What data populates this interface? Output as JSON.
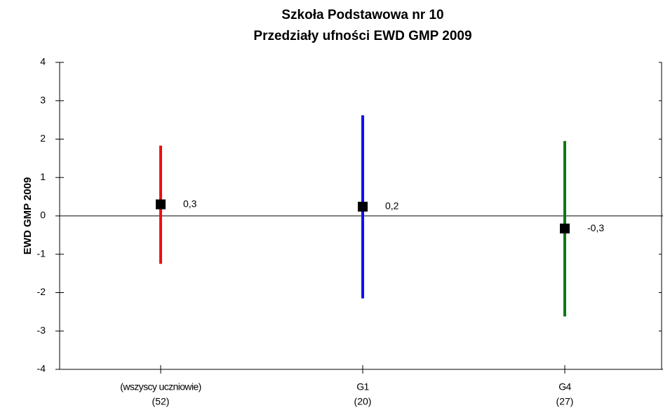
{
  "chart_data": {
    "type": "errorbar",
    "title": [
      "Szkoła Podstawowa nr 10",
      "Przedziały ufności EWD GMP 2009"
    ],
    "y_label": "EWD GMP 2009",
    "categories": [
      "(wszyscy uczniowie)",
      "G1",
      "G4"
    ],
    "category_counts": [
      "(52)",
      "(20)",
      "(27)"
    ],
    "values": [
      0.3,
      0.24,
      -0.33
    ],
    "value_labels": [
      "0,3",
      "0,2",
      "-0,3"
    ],
    "lower": [
      -1.25,
      -2.15,
      -2.62
    ],
    "upper": [
      1.83,
      2.62,
      1.95
    ],
    "colors": [
      "#ee1111",
      "#1111ee",
      "#117711"
    ],
    "marker_color": "#000000",
    "ylim": [
      -4,
      4
    ],
    "yticks": [
      -4,
      -3,
      -2,
      -1,
      0,
      1,
      2,
      3,
      4
    ]
  }
}
